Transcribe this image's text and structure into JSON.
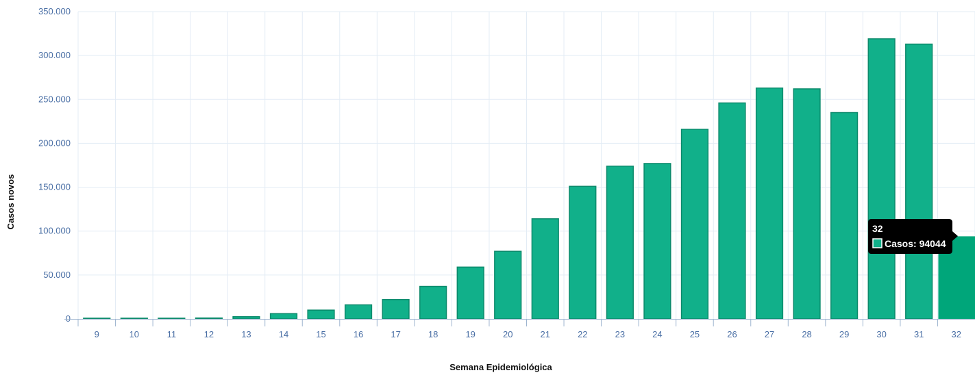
{
  "chart_data": {
    "type": "bar",
    "xlabel": "Semana Epidemiológica",
    "ylabel": "Casos novos",
    "ylim": [
      0,
      350000
    ],
    "yticks": [
      "0",
      "50.000",
      "100.000",
      "150.000",
      "200.000",
      "250.000",
      "300.000",
      "350.000"
    ],
    "categories": [
      "9",
      "10",
      "11",
      "12",
      "13",
      "14",
      "15",
      "16",
      "17",
      "18",
      "19",
      "20",
      "21",
      "22",
      "23",
      "24",
      "25",
      "26",
      "27",
      "28",
      "29",
      "30",
      "31",
      "32"
    ],
    "series": [
      {
        "name": "Casos",
        "values": [
          2,
          30,
          300,
          1000,
          2500,
          6000,
          10000,
          16000,
          22000,
          37000,
          59000,
          77000,
          114000,
          151000,
          174000,
          177000,
          216000,
          246000,
          263000,
          262000,
          235000,
          319000,
          313000,
          94044
        ]
      }
    ],
    "grid": true,
    "colors": {
      "bar": "#11b08a",
      "bar_border": "#0c8a6c",
      "highlight": "#00a67a",
      "grid": "#e3ecf5",
      "tick_text": "#4a6fa5"
    },
    "tooltip": {
      "title": "32",
      "label": "Casos: 94044"
    }
  }
}
